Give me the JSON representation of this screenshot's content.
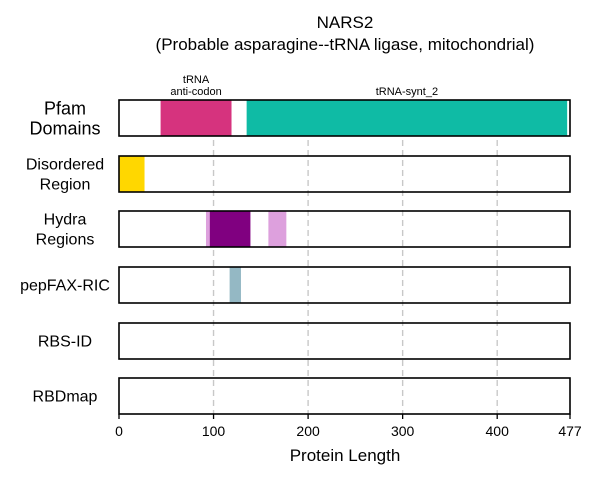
{
  "chart_data": {
    "type": "bar",
    "title": "NARS2",
    "subtitle": "(Probable asparagine--tRNA ligase, mitochondrial)",
    "xlabel": "Protein Length",
    "xlim": [
      0,
      477
    ],
    "xticks": [
      "0",
      "100",
      "200",
      "300",
      "400",
      "477"
    ],
    "xtick_values": [
      0,
      100,
      200,
      300,
      400,
      477
    ],
    "grid": "dashed vertical lines at 100, 200, 300, 400",
    "tracks": [
      {
        "label": [
          "Pfam",
          "Domains"
        ],
        "segments": [
          {
            "start": 44,
            "end": 119,
            "color": "#D6337E",
            "label": [
              "tRNA",
              "anti-codon"
            ]
          },
          {
            "start": 135,
            "end": 474,
            "color": "#0FBBA5",
            "label": [
              "tRNA-synt_2"
            ]
          }
        ]
      },
      {
        "label": [
          "Disordered",
          "Region"
        ],
        "segments": [
          {
            "start": 0,
            "end": 27,
            "color": "#FFD700"
          }
        ]
      },
      {
        "label": [
          "Hydra",
          "Regions"
        ],
        "segments": [
          {
            "start": 92,
            "end": 96,
            "color": "#DDA0DD"
          },
          {
            "start": 96,
            "end": 139,
            "color": "#800080"
          },
          {
            "start": 158,
            "end": 177,
            "color": "#DDA0DD"
          }
        ]
      },
      {
        "label": [
          "pepFAX-RIC"
        ],
        "segments": [
          {
            "start": 117,
            "end": 129,
            "color": "#94B8C4"
          }
        ]
      },
      {
        "label": [
          "RBS-ID"
        ],
        "segments": []
      },
      {
        "label": [
          "RBDmap"
        ],
        "segments": []
      }
    ]
  }
}
